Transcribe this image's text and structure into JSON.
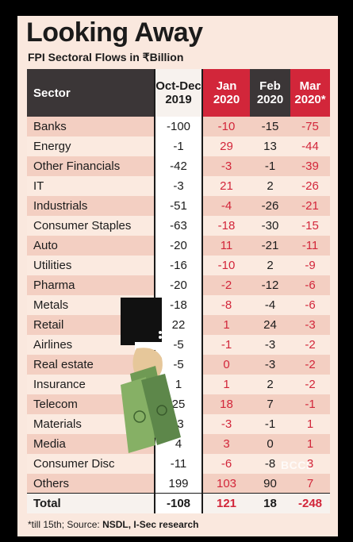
{
  "title": "Looking Away",
  "subtitle": "FPI Sectoral Flows in ₹Billion",
  "footnote_prefix": "*till 15th; Source: ",
  "footnote_source": "NSDL, I-Sec research",
  "watermark": "BCCL",
  "colors": {
    "accent_red": "#d2263a",
    "header_dark": "#3b3637",
    "band": "#f3cfc2",
    "paper": "#fae8de"
  },
  "chart_data": {
    "type": "table",
    "columns": [
      "Sector",
      "Oct-Dec\n2019",
      "Jan\n2020",
      "Feb\n2020",
      "Mar\n2020*"
    ],
    "rows": [
      {
        "sector": "Banks",
        "values": [
          "-100",
          "-10",
          "-15",
          "-75"
        ]
      },
      {
        "sector": "Energy",
        "values": [
          "-1",
          "29",
          "13",
          "-44"
        ]
      },
      {
        "sector": "Other Financials",
        "values": [
          "-42",
          "-3",
          "-1",
          "-39"
        ]
      },
      {
        "sector": "IT",
        "values": [
          "-3",
          "21",
          "2",
          "-26"
        ]
      },
      {
        "sector": "Industrials",
        "values": [
          "-51",
          "-4",
          "-26",
          "-21"
        ]
      },
      {
        "sector": "Consumer Staples",
        "values": [
          "-63",
          "-18",
          "-30",
          "-15"
        ]
      },
      {
        "sector": "Auto",
        "values": [
          "-20",
          "11",
          "-21",
          "-11"
        ]
      },
      {
        "sector": "Utilities",
        "values": [
          "-16",
          "-10",
          "2",
          "-9"
        ]
      },
      {
        "sector": "Pharma",
        "values": [
          "-20",
          "-2",
          "-12",
          "-6"
        ]
      },
      {
        "sector": "Metals",
        "values": [
          "-18",
          "-8",
          "-4",
          "-6"
        ]
      },
      {
        "sector": "Retail",
        "values": [
          "22",
          "1",
          "24",
          "-3"
        ]
      },
      {
        "sector": "Airlines",
        "values": [
          "-5",
          "-1",
          "-3",
          "-2"
        ]
      },
      {
        "sector": "Real estate",
        "values": [
          "-5",
          "0",
          "-3",
          "-2"
        ]
      },
      {
        "sector": "Insurance",
        "values": [
          "1",
          "1",
          "2",
          "-2"
        ]
      },
      {
        "sector": "Telecom",
        "values": [
          "25",
          "18",
          "7",
          "-1"
        ]
      },
      {
        "sector": "Materials",
        "values": [
          "-3",
          "-3",
          "-1",
          "1"
        ]
      },
      {
        "sector": "Media",
        "values": [
          "4",
          "3",
          "0",
          "1"
        ]
      },
      {
        "sector": "Consumer Disc",
        "values": [
          "-11",
          "-6",
          "-8",
          "3"
        ]
      },
      {
        "sector": "Others",
        "values": [
          "199",
          "103",
          "90",
          "7"
        ]
      },
      {
        "sector": "Total",
        "values": [
          "-108",
          "121",
          "18",
          "-248"
        ]
      }
    ]
  }
}
